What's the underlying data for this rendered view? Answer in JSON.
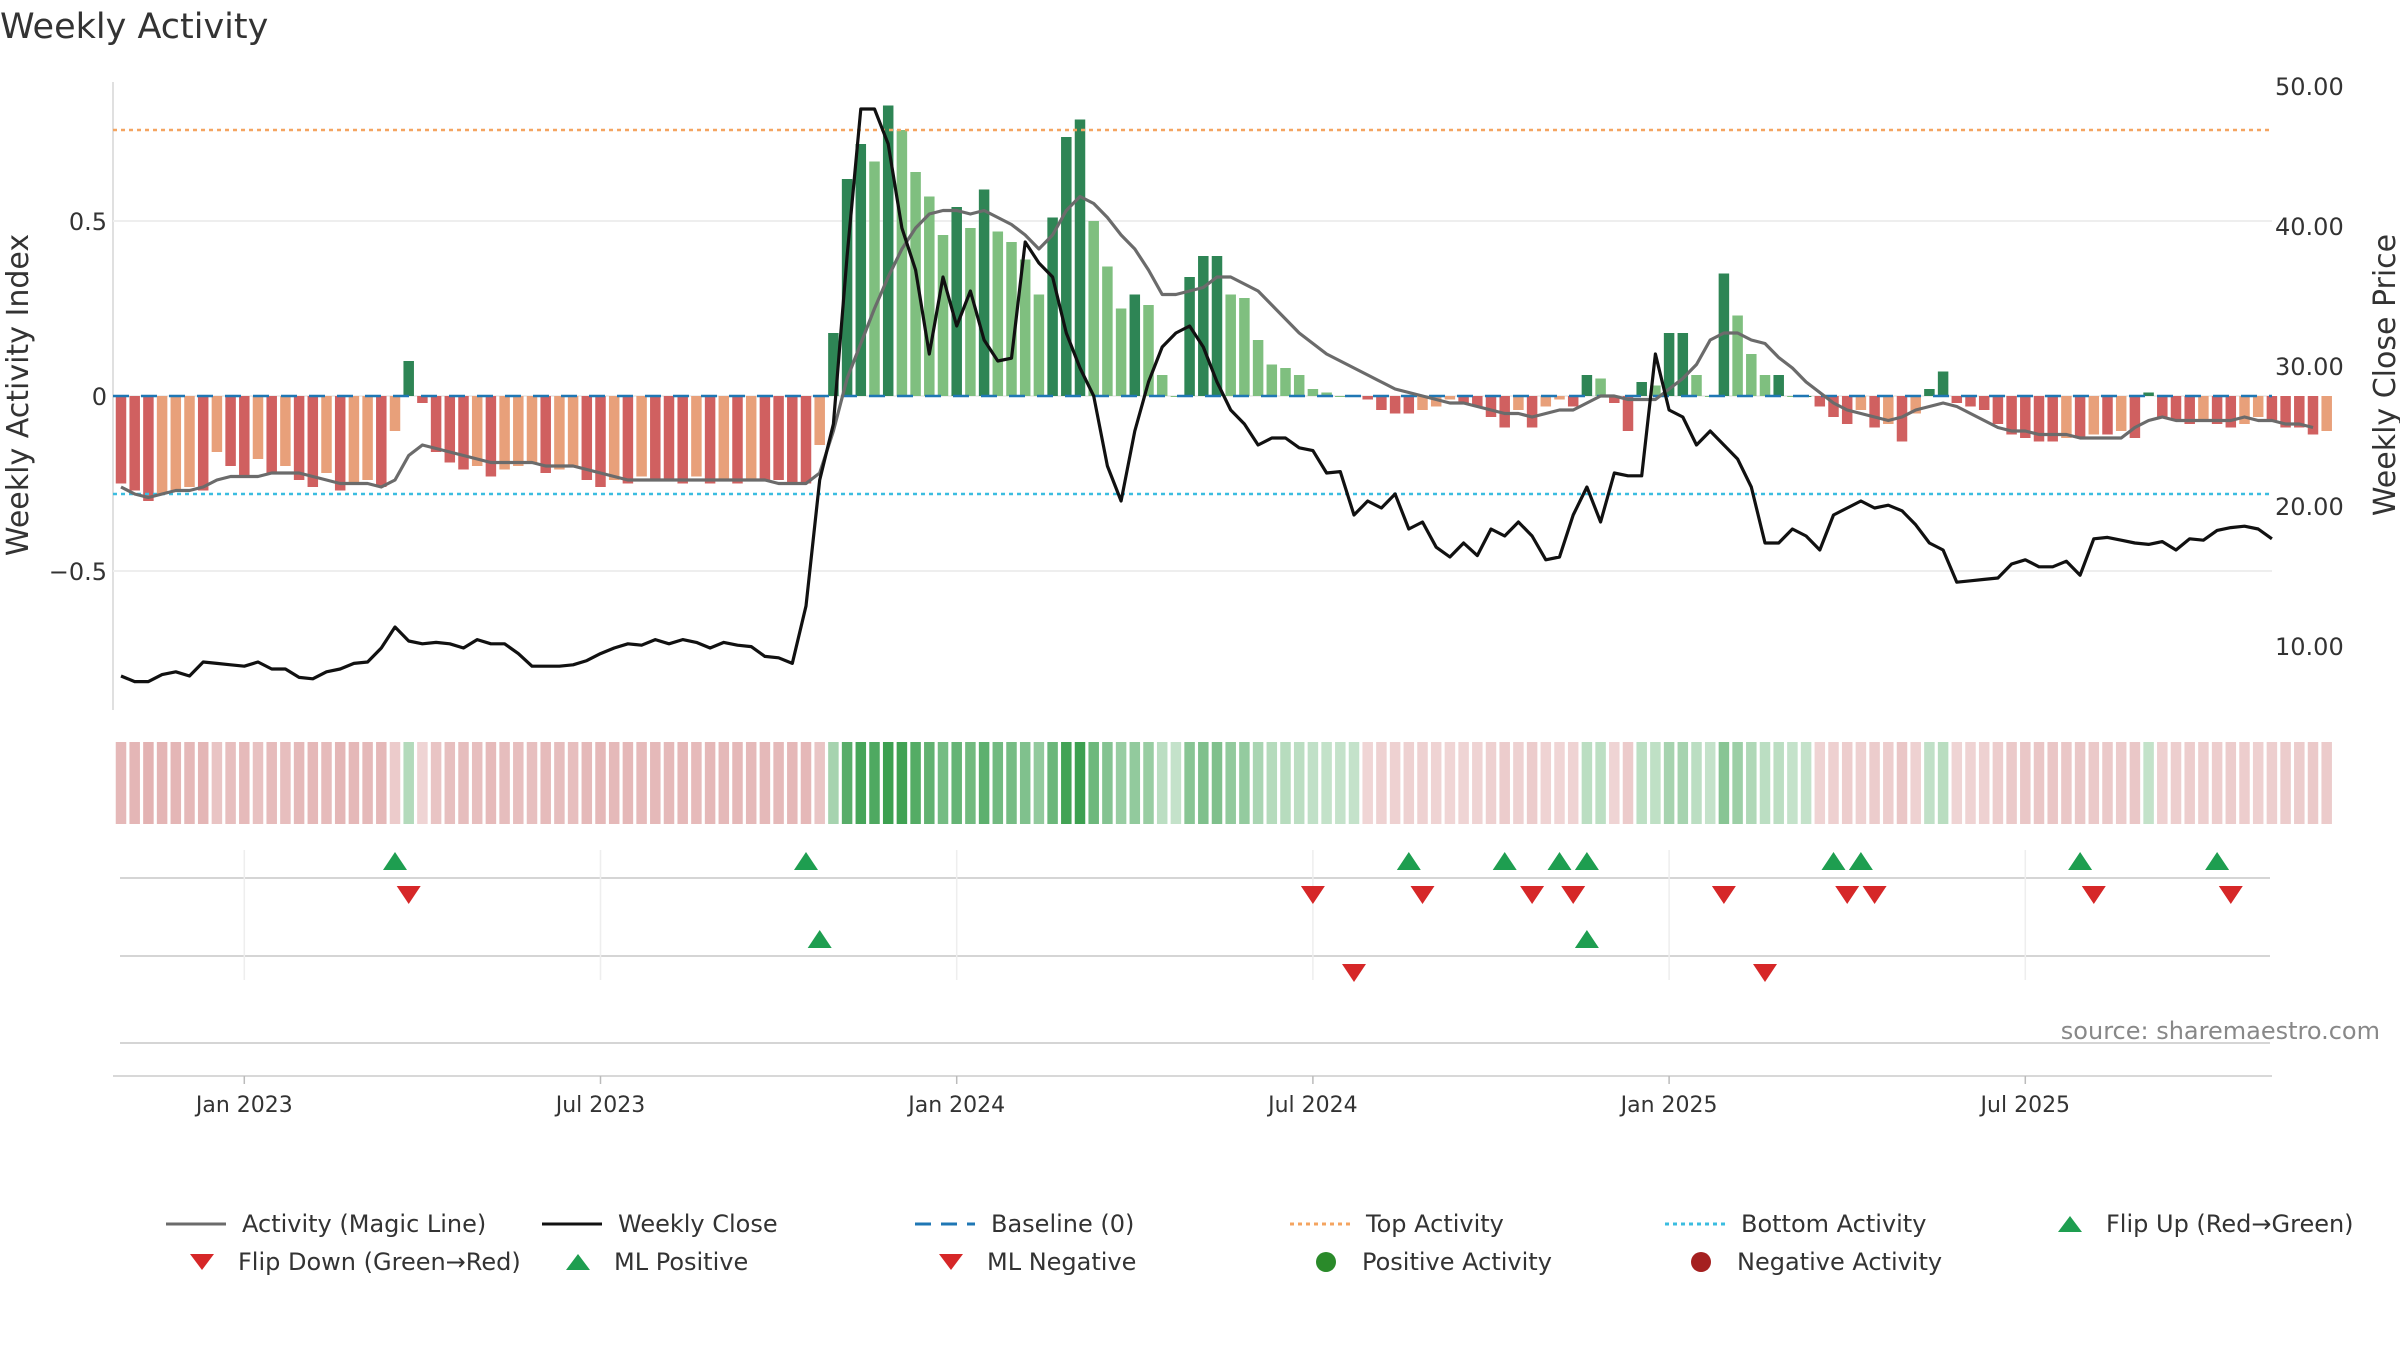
{
  "title": "Weekly Activity",
  "source": "source: sharemaestro.com",
  "colors": {
    "strong_pos": "#2e8555",
    "light_pos": "#7fbf7f",
    "strong_neg": "#d06060",
    "light_neg": "#e8a07a",
    "magic": "#6b6b6b",
    "close": "#111111",
    "baseline": "#1f77b4",
    "top": "#f4a460",
    "bottom": "#3bbde0",
    "flip_up": "#1e9e50",
    "flip_down": "#d62728"
  },
  "chart_data": {
    "type": "bar+line",
    "title": "Weekly Activity",
    "ylabel_left": "Weekly Activity Index",
    "ylabel_right": "Weekly Close Price",
    "left_ticks": [
      "0.5",
      "0",
      "−0.5"
    ],
    "right_ticks": [
      "50.00",
      "40.00",
      "30.00",
      "20.00",
      "10.00"
    ],
    "x_ticks": [
      "Jan 2023",
      "Jul 2023",
      "Jan 2024",
      "Jul 2024",
      "Jan 2025",
      "Jul 2025"
    ],
    "x_tick_weeks": [
      9,
      35,
      61,
      87,
      113,
      139
    ],
    "ylim_left": [
      -0.9,
      0.9
    ],
    "ylim_right": [
      5,
      51
    ],
    "top_activity": 0.76,
    "bottom_activity": -0.28,
    "baseline": 0,
    "activity": [
      -0.25,
      -0.27,
      -0.3,
      -0.28,
      -0.27,
      -0.26,
      -0.27,
      -0.16,
      -0.2,
      -0.23,
      -0.18,
      -0.22,
      -0.2,
      -0.24,
      -0.26,
      -0.22,
      -0.27,
      -0.25,
      -0.24,
      -0.26,
      -0.1,
      0.1,
      -0.02,
      -0.16,
      -0.19,
      -0.21,
      -0.2,
      -0.23,
      -0.21,
      -0.2,
      -0.19,
      -0.22,
      -0.21,
      -0.2,
      -0.24,
      -0.26,
      -0.24,
      -0.25,
      -0.23,
      -0.24,
      -0.24,
      -0.25,
      -0.23,
      -0.25,
      -0.24,
      -0.25,
      -0.24,
      -0.24,
      -0.24,
      -0.25,
      -0.25,
      -0.14,
      0.18,
      0.62,
      0.72,
      0.67,
      0.83,
      0.76,
      0.64,
      0.57,
      0.46,
      0.54,
      0.48,
      0.59,
      0.47,
      0.44,
      0.39,
      0.29,
      0.51,
      0.74,
      0.79,
      0.5,
      0.37,
      0.25,
      0.29,
      0.26,
      0.06,
      0.0,
      0.34,
      0.4,
      0.4,
      0.29,
      0.28,
      0.16,
      0.09,
      0.08,
      0.06,
      0.02,
      0.01,
      0.0,
      0.0,
      -0.01,
      -0.04,
      -0.05,
      -0.05,
      -0.04,
      -0.03,
      -0.01,
      -0.02,
      -0.03,
      -0.06,
      -0.09,
      -0.04,
      -0.09,
      -0.03,
      -0.01,
      -0.03,
      0.06,
      0.05,
      -0.02,
      -0.1,
      0.04,
      0.03,
      0.18,
      0.18,
      0.06,
      0.0,
      0.35,
      0.23,
      0.12,
      0.06,
      0.06,
      0.0,
      0.0,
      -0.03,
      -0.06,
      -0.08,
      -0.04,
      -0.09,
      -0.08,
      -0.13,
      -0.05,
      0.02,
      0.07,
      -0.02,
      -0.03,
      -0.04,
      -0.08,
      -0.11,
      -0.12,
      -0.13,
      -0.13,
      -0.12,
      -0.12,
      -0.11,
      -0.11,
      -0.1,
      -0.12,
      0.01,
      -0.06,
      -0.07,
      -0.08,
      -0.07,
      -0.08,
      -0.09,
      -0.08,
      -0.06,
      -0.07,
      -0.09,
      -0.09,
      -0.11,
      -0.1
    ],
    "magic_line": [
      -0.26,
      -0.28,
      -0.29,
      -0.28,
      -0.27,
      -0.27,
      -0.26,
      -0.24,
      -0.23,
      -0.23,
      -0.23,
      -0.22,
      -0.22,
      -0.22,
      -0.23,
      -0.24,
      -0.25,
      -0.25,
      -0.25,
      -0.26,
      -0.24,
      -0.17,
      -0.14,
      -0.15,
      -0.16,
      -0.17,
      -0.18,
      -0.19,
      -0.19,
      -0.19,
      -0.19,
      -0.2,
      -0.2,
      -0.2,
      -0.21,
      -0.22,
      -0.23,
      -0.24,
      -0.24,
      -0.24,
      -0.24,
      -0.24,
      -0.24,
      -0.24,
      -0.24,
      -0.24,
      -0.24,
      -0.24,
      -0.25,
      -0.25,
      -0.25,
      -0.22,
      -0.1,
      0.05,
      0.15,
      0.25,
      0.34,
      0.42,
      0.48,
      0.52,
      0.53,
      0.53,
      0.52,
      0.53,
      0.51,
      0.49,
      0.46,
      0.42,
      0.46,
      0.53,
      0.57,
      0.55,
      0.51,
      0.46,
      0.42,
      0.36,
      0.29,
      0.29,
      0.3,
      0.31,
      0.34,
      0.34,
      0.32,
      0.3,
      0.26,
      0.22,
      0.18,
      0.15,
      0.12,
      0.1,
      0.08,
      0.06,
      0.04,
      0.02,
      0.01,
      0.0,
      -0.01,
      -0.02,
      -0.02,
      -0.03,
      -0.04,
      -0.05,
      -0.05,
      -0.06,
      -0.05,
      -0.04,
      -0.04,
      -0.02,
      0.0,
      0.0,
      -0.01,
      -0.01,
      -0.01,
      0.02,
      0.05,
      0.09,
      0.16,
      0.18,
      0.18,
      0.16,
      0.15,
      0.11,
      0.08,
      0.04,
      0.01,
      -0.02,
      -0.04,
      -0.05,
      -0.06,
      -0.07,
      -0.06,
      -0.04,
      -0.03,
      -0.02,
      -0.03,
      -0.05,
      -0.07,
      -0.09,
      -0.1,
      -0.1,
      -0.11,
      -0.11,
      -0.11,
      -0.12,
      -0.12,
      -0.12,
      -0.12,
      -0.09,
      -0.07,
      -0.06,
      -0.07,
      -0.07,
      -0.07,
      -0.07,
      -0.07,
      -0.06,
      -0.07,
      -0.07,
      -0.08,
      -0.08,
      -0.09
    ],
    "close": [
      8.0,
      7.6,
      7.6,
      8.1,
      8.3,
      8.0,
      9.0,
      8.9,
      8.8,
      8.7,
      9.0,
      8.5,
      8.5,
      7.9,
      7.8,
      8.3,
      8.5,
      8.9,
      9.0,
      10.0,
      11.5,
      10.5,
      10.3,
      10.4,
      10.3,
      10.0,
      10.6,
      10.3,
      10.3,
      9.6,
      8.7,
      8.7,
      8.7,
      8.8,
      9.1,
      9.6,
      10.0,
      10.3,
      10.2,
      10.6,
      10.3,
      10.6,
      10.4,
      10.0,
      10.4,
      10.2,
      10.1,
      9.4,
      9.3,
      8.9,
      13.0,
      22.0,
      26.0,
      38.0,
      48.5,
      48.5,
      46.0,
      40.0,
      37.0,
      31.0,
      36.5,
      33.0,
      35.5,
      32.0,
      30.5,
      30.7,
      39.0,
      37.5,
      36.5,
      32.5,
      30.0,
      28.0,
      23.0,
      20.5,
      25.5,
      29.0,
      31.5,
      32.5,
      33.0,
      31.5,
      29.0,
      27.0,
      26.0,
      24.5,
      25.0,
      25.0,
      24.3,
      24.1,
      22.5,
      22.6,
      19.5,
      20.5,
      20.0,
      21.0,
      18.5,
      19.0,
      17.2,
      16.5,
      17.5,
      16.6,
      18.5,
      18.0,
      19.0,
      18.0,
      16.3,
      16.5,
      19.5,
      21.5,
      19.0,
      22.5,
      22.3,
      22.3,
      31.0,
      27.0,
      26.5,
      24.5,
      25.5,
      24.5,
      23.5,
      21.5,
      17.5,
      17.5,
      18.5,
      18.0,
      17.0,
      19.5,
      20.0,
      20.5,
      20.0,
      20.2,
      19.8,
      18.8,
      17.5,
      17.0,
      14.7,
      14.8,
      14.9,
      15.0,
      16.0,
      16.3,
      15.8,
      15.8,
      16.2,
      15.2,
      17.8,
      17.9,
      17.7,
      17.5,
      17.4,
      17.6,
      17.0,
      17.8,
      17.7,
      18.4,
      18.6,
      18.7,
      18.5,
      17.8
    ],
    "flip_up_weeks": [
      20,
      50,
      94,
      101,
      105,
      107,
      125,
      127,
      143,
      153
    ],
    "flip_down_weeks": [
      21,
      87,
      95,
      103,
      106,
      117,
      126,
      128,
      144,
      154
    ],
    "ml_positive_weeks": [
      51,
      107
    ],
    "ml_negative_weeks": [
      90,
      120
    ]
  },
  "legend": {
    "magic": "Activity (Magic Line)",
    "close": "Weekly Close",
    "baseline": "Baseline (0)",
    "top": "Top Activity",
    "bottom": "Bottom Activity",
    "flip_up": "Flip Up (Red→Green)",
    "flip_down": "Flip Down (Green→Red)",
    "ml_pos": "ML Positive",
    "ml_neg": "ML Negative",
    "pos_act": "Positive Activity",
    "neg_act": "Negative Activity"
  }
}
